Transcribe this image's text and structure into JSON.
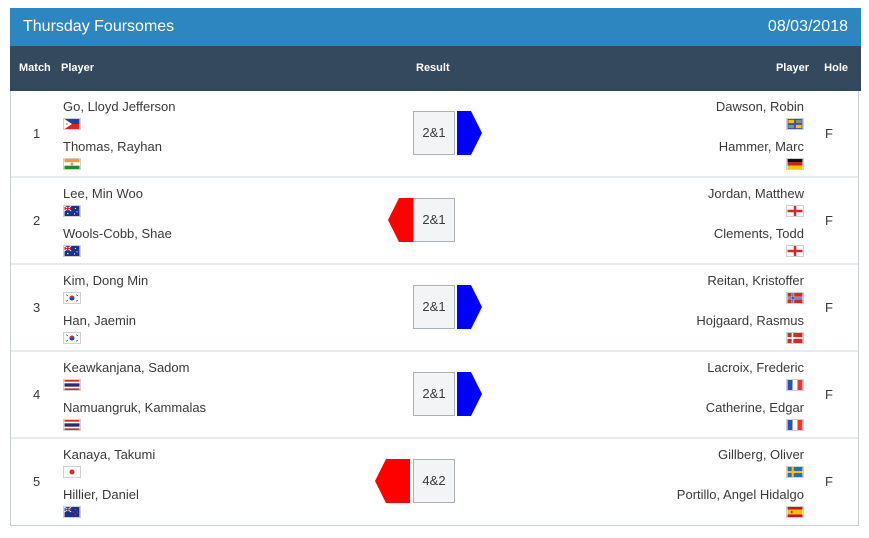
{
  "header": {
    "title": "Thursday Foursomes",
    "date": "08/03/2018"
  },
  "columns": {
    "match": "Match",
    "player_left": "Player",
    "result": "Result",
    "player_right": "Player",
    "hole": "Hole"
  },
  "colors": {
    "title_bg": "#2d86c0",
    "header_bg": "#34495e",
    "left_win": "#ff0000",
    "right_win": "#0000ff"
  },
  "matches": [
    {
      "number": "1",
      "left": [
        {
          "name": "Go, Lloyd Jefferson",
          "flag": "philippines-flag-icon"
        },
        {
          "name": "Thomas, Rayhan",
          "flag": "india-flag-icon"
        }
      ],
      "result": "2&1",
      "winner": "right",
      "right": [
        {
          "name": "Dawson, Robin",
          "flag": "europe-flag-icon"
        },
        {
          "name": "Hammer, Marc",
          "flag": "germany-flag-icon"
        }
      ],
      "hole": "F"
    },
    {
      "number": "2",
      "left": [
        {
          "name": "Lee, Min Woo",
          "flag": "australia-flag-icon"
        },
        {
          "name": "Wools-Cobb, Shae",
          "flag": "australia-flag-icon"
        }
      ],
      "result": "2&1",
      "winner": "left",
      "right": [
        {
          "name": "Jordan, Matthew",
          "flag": "england-flag-icon"
        },
        {
          "name": "Clements, Todd",
          "flag": "england-flag-icon"
        }
      ],
      "hole": "F"
    },
    {
      "number": "3",
      "left": [
        {
          "name": "Kim, Dong Min",
          "flag": "south-korea-flag-icon"
        },
        {
          "name": "Han, Jaemin",
          "flag": "south-korea-flag-icon"
        }
      ],
      "result": "2&1",
      "winner": "right",
      "right": [
        {
          "name": "Reitan, Kristoffer",
          "flag": "norway-flag-icon"
        },
        {
          "name": "Hojgaard, Rasmus",
          "flag": "denmark-flag-icon"
        }
      ],
      "hole": "F"
    },
    {
      "number": "4",
      "left": [
        {
          "name": "Keawkanjana, Sadom",
          "flag": "thailand-flag-icon"
        },
        {
          "name": "Namuangruk, Kammalas",
          "flag": "thailand-flag-icon"
        }
      ],
      "result": "2&1",
      "winner": "right",
      "right": [
        {
          "name": "Lacroix, Frederic",
          "flag": "france-flag-icon"
        },
        {
          "name": "Catherine, Edgar",
          "flag": "france-flag-icon"
        }
      ],
      "hole": "F"
    },
    {
      "number": "5",
      "left": [
        {
          "name": "Kanaya, Takumi",
          "flag": "japan-flag-icon"
        },
        {
          "name": "Hillier, Daniel",
          "flag": "new-zealand-flag-icon"
        }
      ],
      "result": "4&2",
      "winner": "left",
      "right": [
        {
          "name": "Gillberg, Oliver",
          "flag": "sweden-flag-icon"
        },
        {
          "name": "Portillo, Angel Hidalgo",
          "flag": "spain-flag-icon"
        }
      ],
      "hole": "F"
    }
  ]
}
